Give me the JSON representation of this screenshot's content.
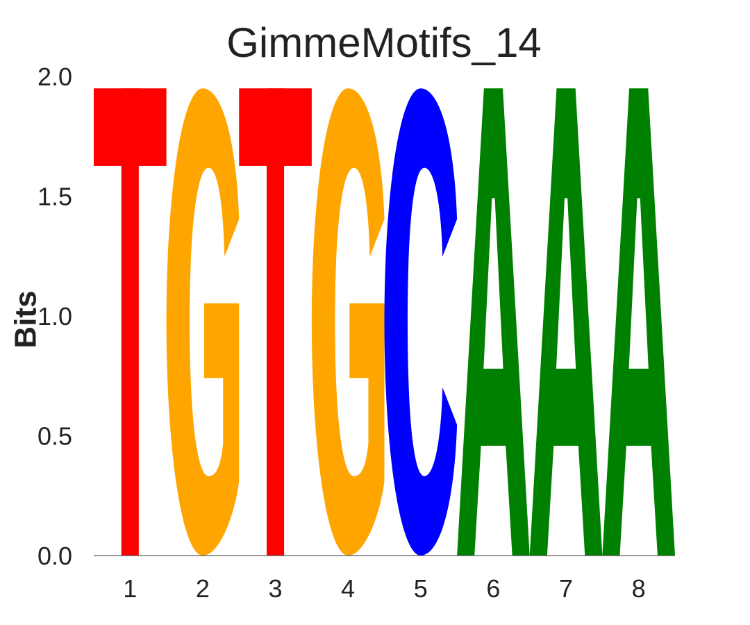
{
  "chart_data": {
    "type": "sequence-logo",
    "title": "GimmeMotifs_14",
    "ylabel": "Bits",
    "xlabel": "",
    "ylim": [
      0,
      2.0
    ],
    "yticks": [
      "0.0",
      "0.5",
      "1.0",
      "1.5",
      "2.0"
    ],
    "positions": [
      {
        "x": "1",
        "letter": "T",
        "bits": 1.95
      },
      {
        "x": "2",
        "letter": "G",
        "bits": 1.95
      },
      {
        "x": "3",
        "letter": "T",
        "bits": 1.95
      },
      {
        "x": "4",
        "letter": "G",
        "bits": 1.95
      },
      {
        "x": "5",
        "letter": "C",
        "bits": 1.95
      },
      {
        "x": "6",
        "letter": "A",
        "bits": 1.95
      },
      {
        "x": "7",
        "letter": "A",
        "bits": 1.95
      },
      {
        "x": "8",
        "letter": "A",
        "bits": 1.95
      }
    ],
    "colors": {
      "A": "#008000",
      "C": "#0000ff",
      "G": "#ffa500",
      "T": "#ff0000"
    },
    "grid": false,
    "legend": "none"
  }
}
